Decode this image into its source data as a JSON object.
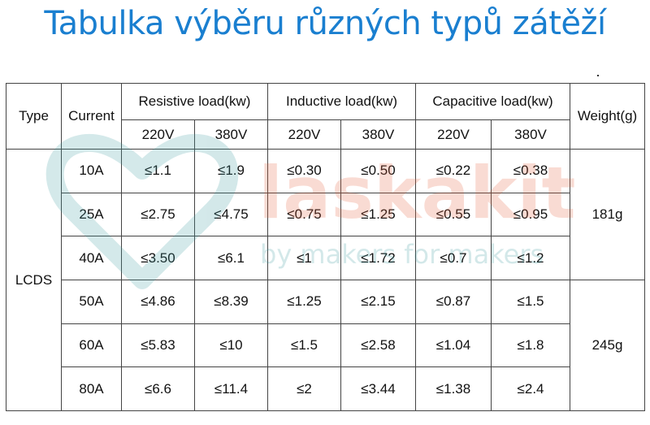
{
  "title": "Tabulka výběru různých typů zátěží",
  "watermark": {
    "brand": "laskakit",
    "tagline": "by makers for makers"
  },
  "table": {
    "headers": {
      "type": "Type",
      "current": "Current",
      "resistive": "Resistive load(kw)",
      "inductive": "Inductive load(kw)",
      "capacitive": "Capacitive load(kw)",
      "weight": "Weight(g)",
      "v220": "220V",
      "v380": "380V"
    },
    "type_value": "LCDS",
    "rows": [
      {
        "current": "10A",
        "r220": "≤1.1",
        "r380": "≤1.9",
        "i220": "≤0.30",
        "i380": "≤0.50",
        "c220": "≤0.22",
        "c380": "≤0.38"
      },
      {
        "current": "25A",
        "r220": "≤2.75",
        "r380": "≤4.75",
        "i220": "≤0.75",
        "i380": "≤1.25",
        "c220": "≤0.55",
        "c380": "≤0.95"
      },
      {
        "current": "40A",
        "r220": "≤3.50",
        "r380": "≤6.1",
        "i220": "≤1",
        "i380": "≤1.72",
        "c220": "≤0.7",
        "c380": "≤1.2"
      },
      {
        "current": "50A",
        "r220": "≤4.86",
        "r380": "≤8.39",
        "i220": "≤1.25",
        "i380": "≤2.15",
        "c220": "≤0.87",
        "c380": "≤1.5"
      },
      {
        "current": "60A",
        "r220": "≤5.83",
        "r380": "≤10",
        "i220": "≤1.5",
        "i380": "≤2.58",
        "c220": "≤1.04",
        "c380": "≤1.8"
      },
      {
        "current": "80A",
        "r220": "≤6.6",
        "r380": "≤11.4",
        "i220": "≤2",
        "i380": "≤3.44",
        "c220": "≤1.38",
        "c380": "≤2.4"
      }
    ],
    "weights": [
      "181g",
      "245g"
    ]
  }
}
